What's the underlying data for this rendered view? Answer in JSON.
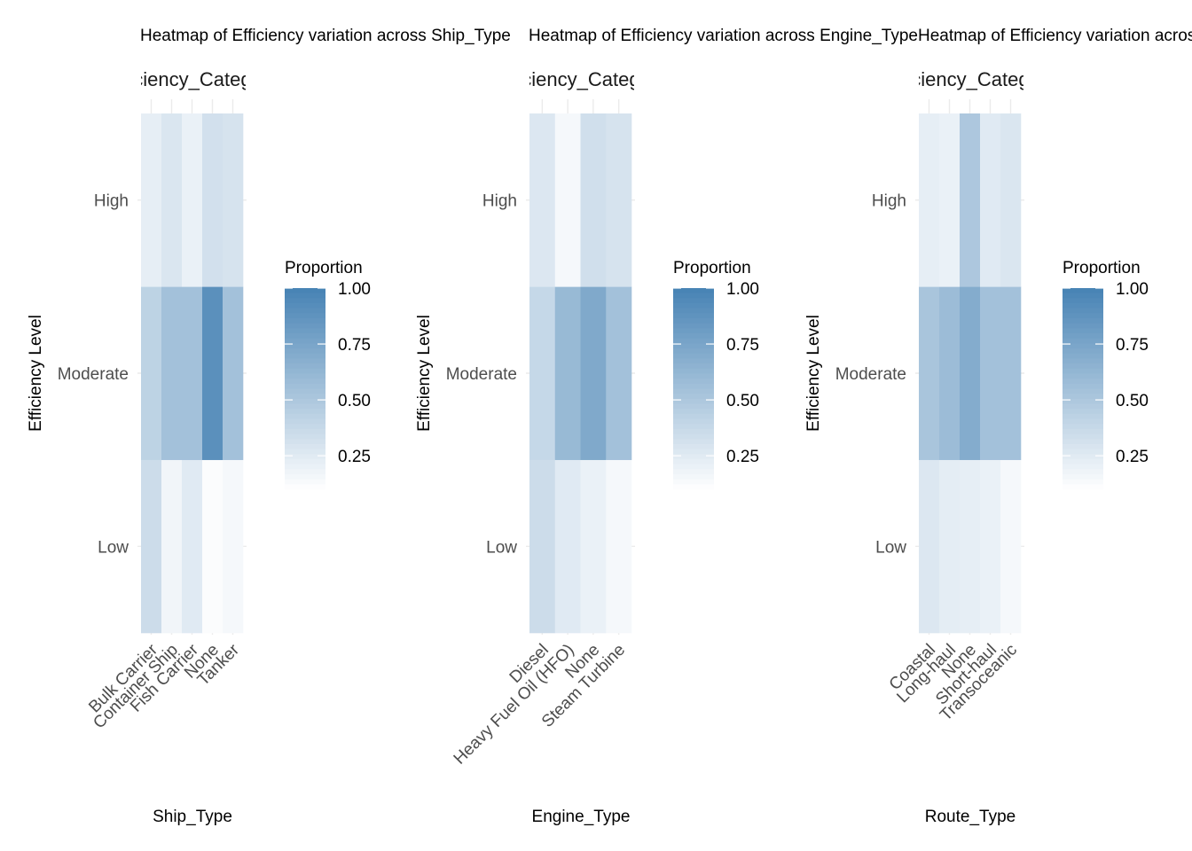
{
  "legend": {
    "title": "Proportion",
    "ticks": [
      {
        "value": 0.25,
        "label": "0.25"
      },
      {
        "value": 0.5,
        "label": "0.50"
      },
      {
        "value": 0.75,
        "label": "0.75"
      },
      {
        "value": 1.0,
        "label": "1.00"
      }
    ],
    "range": [
      0.1,
      1.0
    ],
    "color_low": "#ffffff",
    "color_high": "#4682b4"
  },
  "chart_data": [
    {
      "type": "heatmap",
      "title": "Heatmap of Efficiency variation across Ship_Type",
      "top_label": "Efficiency_Category",
      "xlabel": "Ship_Type",
      "ylabel": "Efficiency Level",
      "categories": [
        "Bulk Carrier",
        "Container Ship",
        "Fish Carrier",
        "None",
        "Tanker"
      ],
      "levels": [
        "Low",
        "Moderate",
        "High"
      ],
      "values": {
        "Bulk Carrier": {
          "High": 0.22,
          "Moderate": 0.42,
          "Low": 0.35
        },
        "Container Ship": {
          "High": 0.28,
          "Moderate": 0.55,
          "Low": 0.17
        },
        "Fish Carrier": {
          "High": 0.2,
          "Moderate": 0.55,
          "Low": 0.25
        },
        "None": {
          "High": 0.32,
          "Moderate": 0.9,
          "Low": 0.12
        },
        "Tanker": {
          "High": 0.3,
          "Moderate": 0.55,
          "Low": 0.15
        }
      }
    },
    {
      "type": "heatmap",
      "title": "Heatmap of Efficiency variation across Engine_Type",
      "top_label": "Efficiency_Category",
      "xlabel": "Engine_Type",
      "ylabel": "Efficiency Level",
      "categories": [
        "Diesel",
        "Heavy Fuel Oil (HFO)",
        "None",
        "Steam Turbine"
      ],
      "levels": [
        "Low",
        "Moderate",
        "High"
      ],
      "values": {
        "Diesel": {
          "High": 0.27,
          "Moderate": 0.38,
          "Low": 0.35
        },
        "Heavy Fuel Oil (HFO)": {
          "High": 0.15,
          "Moderate": 0.6,
          "Low": 0.25
        },
        "None": {
          "High": 0.33,
          "Moderate": 0.72,
          "Low": 0.2
        },
        "Steam Turbine": {
          "High": 0.3,
          "Moderate": 0.55,
          "Low": 0.15
        }
      }
    },
    {
      "type": "heatmap",
      "title": "Heatmap of Efficiency variation across Route_Type",
      "top_label": "Efficiency_Category",
      "xlabel": "Route_Type",
      "ylabel": "Efficiency Level",
      "categories": [
        "Coastal",
        "Long-haul",
        "None",
        "Short-haul",
        "Transoceanic"
      ],
      "levels": [
        "Low",
        "Moderate",
        "High"
      ],
      "values": {
        "Coastal": {
          "High": 0.22,
          "Moderate": 0.52,
          "Low": 0.27
        },
        "Long-haul": {
          "High": 0.2,
          "Moderate": 0.58,
          "Low": 0.23
        },
        "None": {
          "High": 0.5,
          "Moderate": 0.7,
          "Low": 0.22
        },
        "Short-haul": {
          "High": 0.25,
          "Moderate": 0.55,
          "Low": 0.2
        },
        "Transoceanic": {
          "High": 0.28,
          "Moderate": 0.55,
          "Low": 0.15
        }
      }
    }
  ]
}
